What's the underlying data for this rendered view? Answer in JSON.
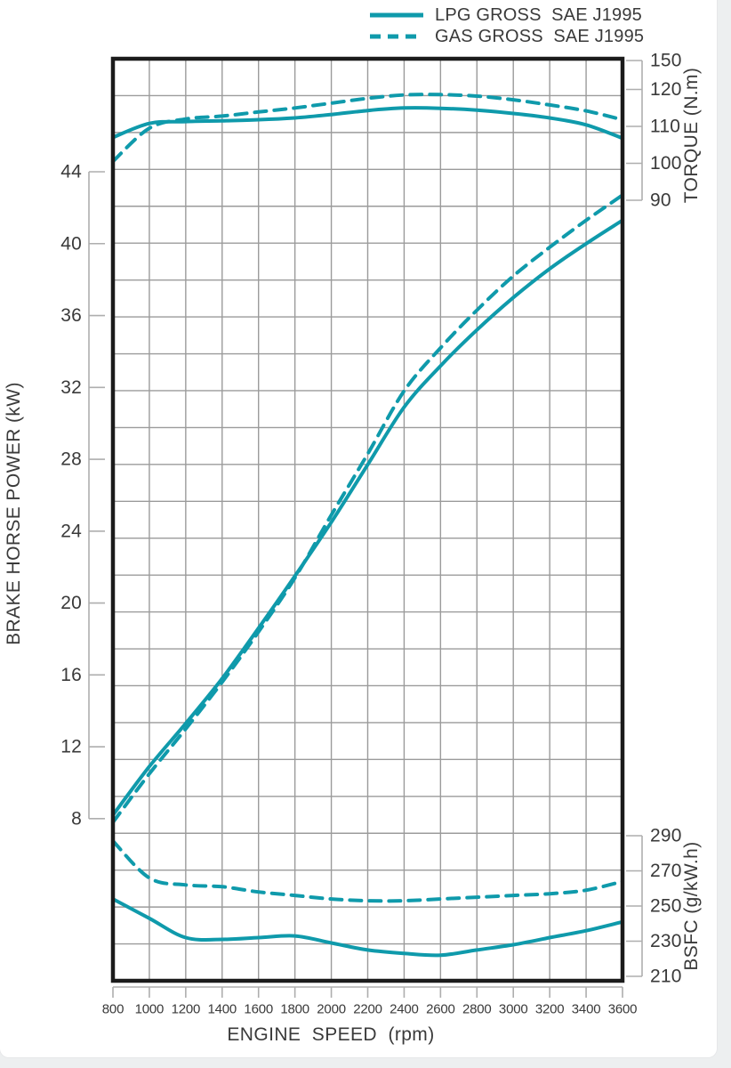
{
  "colors": {
    "curve": "#0f9aab",
    "grid": "#9b9b9b",
    "frame": "#1b1b1b",
    "tick": "#aeaeae",
    "text": "#3a3a3a",
    "page_background": "#edeff0",
    "card_background": "#ffffff"
  },
  "legend": {
    "items": [
      {
        "label": "LPG GROSS  SAE J1995",
        "style": "solid"
      },
      {
        "label": "GAS GROSS  SAE J1995",
        "style": "dashed"
      }
    ]
  },
  "axes": {
    "x": {
      "title": "ENGINE  SPEED  (rpm)",
      "ticks": [
        800,
        1000,
        1200,
        1400,
        1600,
        1800,
        2000,
        2200,
        2400,
        2600,
        2800,
        3000,
        3200,
        3400,
        3600
      ]
    },
    "power": {
      "title": "BRAKE HORSE POWER (kW)",
      "ticks": [
        44,
        40,
        36,
        32,
        28,
        24,
        20,
        16,
        12,
        8
      ]
    },
    "torque": {
      "title": "TORQUE (N.m)",
      "ticks": [
        150,
        120,
        110,
        100,
        90
      ]
    },
    "bsfc": {
      "title": "BSFC (g/kW.h)",
      "ticks": [
        290,
        270,
        250,
        230,
        210
      ]
    }
  },
  "chart_data": {
    "type": "line",
    "title": "",
    "xlabel": "ENGINE SPEED (rpm)",
    "x": [
      800,
      1000,
      1200,
      1400,
      1600,
      1800,
      2000,
      2200,
      2400,
      2600,
      2800,
      3000,
      3200,
      3400,
      3600
    ],
    "series": [
      {
        "name": "LPG GROSS SAE J1995 - Brake Horse Power (kW)",
        "axis": "power",
        "style": "solid",
        "values": [
          8.2,
          10.9,
          13.3,
          15.8,
          18.6,
          21.5,
          24.5,
          27.7,
          30.9,
          33.2,
          35.2,
          37.0,
          38.6,
          40.0,
          41.3
        ]
      },
      {
        "name": "GAS GROSS SAE J1995 - Brake Horse Power (kW)",
        "axis": "power",
        "style": "dashed",
        "values": [
          7.8,
          10.5,
          13.0,
          15.6,
          18.4,
          21.4,
          24.9,
          28.3,
          31.8,
          34.2,
          36.3,
          38.2,
          39.8,
          41.3,
          42.7
        ]
      },
      {
        "name": "LPG GROSS SAE J1995 - Torque (N.m)",
        "axis": "torque",
        "style": "solid",
        "values": [
          107.0,
          110.8,
          111.3,
          111.5,
          111.8,
          112.3,
          113.2,
          114.3,
          115.0,
          114.9,
          114.4,
          113.5,
          112.3,
          110.4,
          106.8
        ]
      },
      {
        "name": "GAS GROSS SAE J1995 - Torque (N.m)",
        "axis": "torque",
        "style": "dashed",
        "values": [
          100.5,
          109.5,
          112.0,
          112.8,
          113.9,
          115.0,
          116.3,
          117.6,
          118.5,
          118.6,
          118.2,
          117.2,
          115.8,
          114.2,
          111.8
        ]
      },
      {
        "name": "LPG GROSS SAE J1995 - BSFC (g/kW.h)",
        "axis": "bsfc",
        "style": "solid",
        "values": [
          254,
          243,
          232,
          231,
          232,
          233,
          229,
          225,
          223,
          222,
          225,
          228,
          232,
          236,
          241
        ]
      },
      {
        "name": "GAS GROSS SAE J1995 - BSFC (g/kW.h)",
        "axis": "bsfc",
        "style": "dashed",
        "values": [
          287,
          266,
          262,
          261,
          258,
          256,
          254,
          253,
          253,
          254,
          255,
          256,
          257,
          259,
          264
        ]
      }
    ],
    "axis_ranges": {
      "x": [
        800,
        3600
      ],
      "power": [
        8,
        44
      ],
      "torque": [
        90,
        150
      ],
      "bsfc": [
        210,
        290
      ]
    },
    "grid": true,
    "legend_position": "top-right"
  }
}
